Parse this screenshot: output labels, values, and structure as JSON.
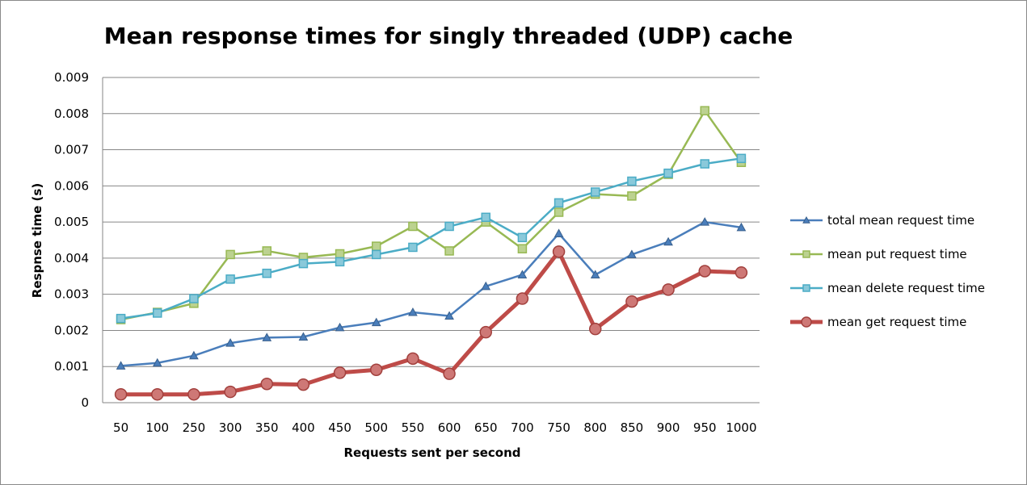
{
  "chart_data": {
    "type": "line",
    "title": "Mean response times for singly threaded (UDP) cache",
    "xlabel": "Requests sent per second",
    "ylabel": "Respnse time (s)",
    "ylim": [
      0,
      0.009
    ],
    "yticks": [
      "0",
      "0.001",
      "0.002",
      "0.003",
      "0.004",
      "0.005",
      "0.006",
      "0.007",
      "0.008",
      "0.009"
    ],
    "grid": true,
    "legend_position": "right",
    "categories": [
      "50",
      "100",
      "250",
      "300",
      "350",
      "400",
      "450",
      "500",
      "550",
      "600",
      "650",
      "700",
      "750",
      "800",
      "850",
      "900",
      "950",
      "1000"
    ],
    "series": [
      {
        "name": "total mean request time",
        "color": "#4a7ebb",
        "marker": "triangle",
        "values": [
          0.00102,
          0.0011,
          0.0013,
          0.00165,
          0.0018,
          0.00182,
          0.00208,
          0.00222,
          0.0025,
          0.0024,
          0.00322,
          0.00354,
          0.00468,
          0.00354,
          0.0041,
          0.00445,
          0.005,
          0.00485
        ]
      },
      {
        "name": "mean put request time",
        "color": "#98b954",
        "marker": "square",
        "values": [
          0.0023,
          0.0025,
          0.00275,
          0.0041,
          0.0042,
          0.00402,
          0.00412,
          0.00433,
          0.00488,
          0.0042,
          0.005,
          0.00426,
          0.00527,
          0.00577,
          0.00572,
          0.00632,
          0.00808,
          0.00665
        ]
      },
      {
        "name": "mean delete request time",
        "color": "#4bacc6",
        "marker": "square",
        "values": [
          0.00233,
          0.00248,
          0.00288,
          0.00342,
          0.00358,
          0.00385,
          0.0039,
          0.0041,
          0.0043,
          0.00488,
          0.00513,
          0.00457,
          0.00553,
          0.00583,
          0.00613,
          0.00635,
          0.00661,
          0.00676
        ]
      },
      {
        "name": "mean get request time",
        "color": "#be4b48",
        "marker": "circle",
        "values": [
          0.00023,
          0.00023,
          0.00023,
          0.0003,
          0.00052,
          0.0005,
          0.00083,
          0.00091,
          0.00122,
          0.0008,
          0.00195,
          0.00288,
          0.00418,
          0.00204,
          0.0028,
          0.00313,
          0.00364,
          0.0036
        ]
      }
    ]
  }
}
